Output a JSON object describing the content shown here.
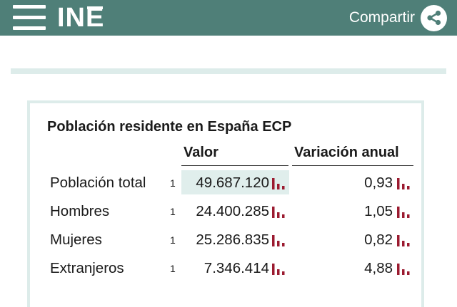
{
  "header": {
    "logo_text": "INE",
    "share_label": "Compartir"
  },
  "colors": {
    "header_bg": "#4f7f78",
    "accent_light": "#ddecea",
    "chart_icon": "#9b1b30"
  },
  "card": {
    "title": "Población residente en España ECP",
    "columns": {
      "valor": "Valor",
      "variacion": "Variación anual"
    },
    "rows": [
      {
        "label": "Población total",
        "note": "1",
        "valor": "49.687.120",
        "variacion": "0,93"
      },
      {
        "label": "Hombres",
        "note": "1",
        "valor": "24.400.285",
        "variacion": "1,05"
      },
      {
        "label": "Mujeres",
        "note": "1",
        "valor": "25.286.835",
        "variacion": "0,82"
      },
      {
        "label": "Extranjeros",
        "note": "1",
        "valor": "7.346.414",
        "variacion": "4,88"
      }
    ]
  }
}
